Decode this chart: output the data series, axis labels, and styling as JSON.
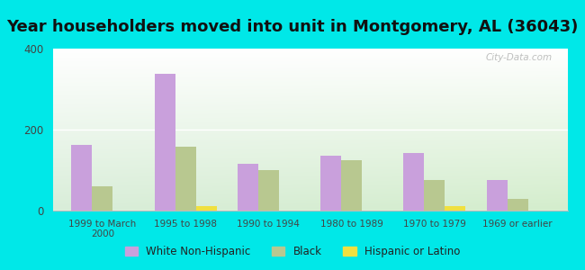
{
  "title": "Year householders moved into unit in Montgomery, AL (36043)",
  "categories": [
    "1999 to March\n2000",
    "1995 to 1998",
    "1990 to 1994",
    "1980 to 1989",
    "1970 to 1979",
    "1969 or earlier"
  ],
  "white": [
    163,
    338,
    115,
    135,
    143,
    75
  ],
  "black": [
    60,
    158,
    100,
    125,
    75,
    30
  ],
  "hispanic": [
    0,
    12,
    0,
    0,
    12,
    0
  ],
  "white_color": "#c9a0dc",
  "black_color": "#b8c890",
  "hispanic_color": "#f0e040",
  "background_outer": "#00e8e8",
  "ylim": [
    0,
    400
  ],
  "yticks": [
    0,
    200,
    400
  ],
  "bar_width": 0.25,
  "title_fontsize": 13,
  "watermark": "City-Data.com"
}
